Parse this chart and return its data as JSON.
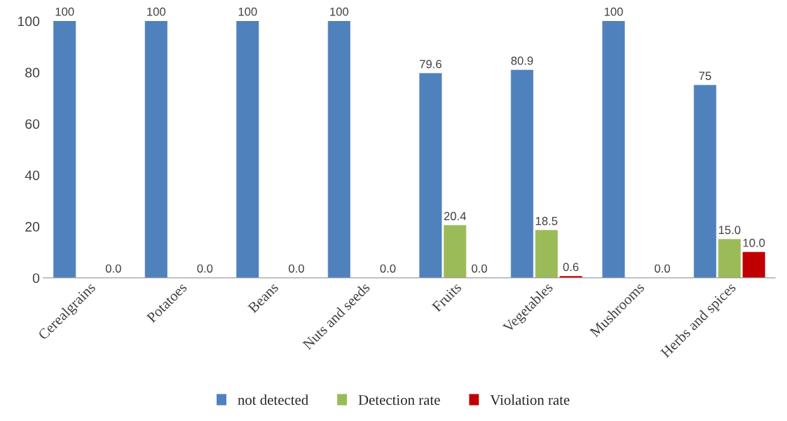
{
  "chart_data": {
    "type": "bar",
    "categories": [
      "Cerealgrains",
      "Potatoes",
      "Beans",
      "Nuts and seeds",
      "Fruits",
      "Vegetables",
      "Mushrooms",
      "Herbs and spices"
    ],
    "series": [
      {
        "name": "not detected",
        "color": "#4f81bd",
        "values": [
          100,
          100,
          100,
          100,
          79.6,
          80.9,
          100,
          75
        ],
        "value_labels": [
          "100",
          "100",
          "100",
          "100",
          "79.6",
          "80.9",
          "100",
          "75"
        ]
      },
      {
        "name": "Detection rate",
        "color": "#9bbb59",
        "values": [
          0,
          0,
          0,
          0,
          20.4,
          18.5,
          0,
          15.0
        ],
        "value_labels": [
          null,
          null,
          null,
          null,
          "20.4",
          "18.5",
          null,
          "15.0"
        ]
      },
      {
        "name": "Violation rate",
        "color": "#c00000",
        "values": [
          0,
          0,
          0,
          0,
          0,
          0.6,
          0,
          10.0
        ],
        "value_labels": [
          "0.0",
          "0.0",
          "0.0",
          "0.0",
          "0.0",
          "0.6",
          "0.0",
          "10.0"
        ]
      }
    ],
    "ylim": [
      0,
      100
    ],
    "yticks": [
      0,
      20,
      40,
      60,
      80,
      100
    ],
    "grid": false,
    "legend": "bottom"
  }
}
